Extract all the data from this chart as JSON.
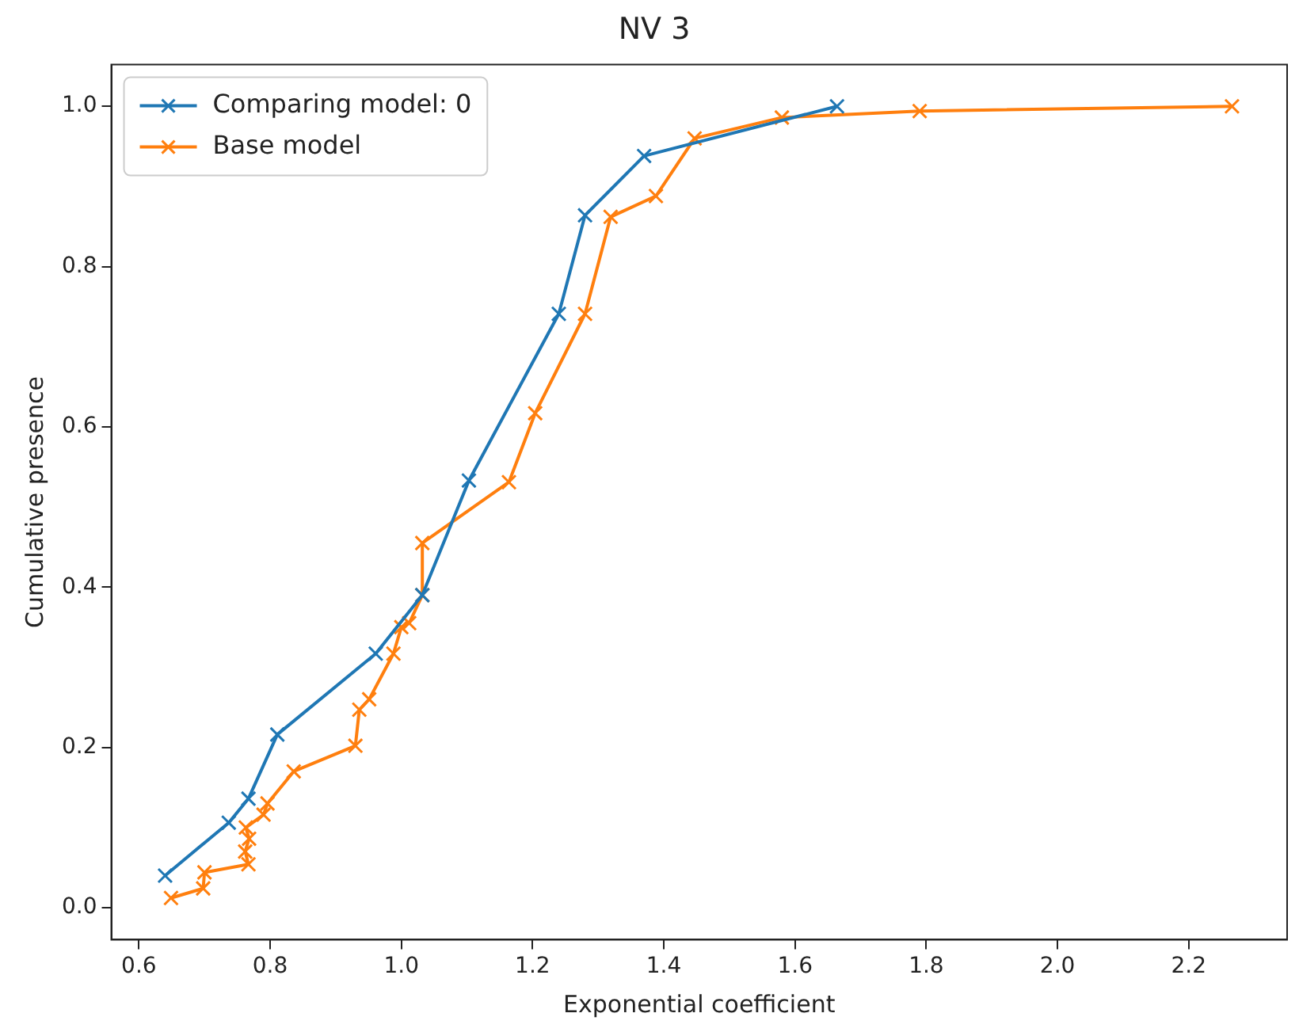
{
  "chart_data": {
    "type": "line",
    "title": "NV 3",
    "xlabel": "Exponential coefficient",
    "ylabel": "Cumulative presence",
    "xlim": [
      0.558,
      2.35
    ],
    "xticks": [
      0.6,
      0.8,
      {
        "value": 1,
        "label": "1.0"
      },
      1.2,
      1.4,
      1.6,
      1.8,
      {
        "value": 2,
        "label": "2.0"
      },
      2.2
    ],
    "ylim": [
      -0.04,
      1.052
    ],
    "yticks": [
      {
        "value": 0,
        "label": "0.0"
      },
      0.2,
      0.4,
      0.6,
      0.8,
      {
        "value": 1,
        "label": "1.0"
      }
    ],
    "grid": false,
    "legend": "top left",
    "marker": "cross",
    "line_style": "solid",
    "series": [
      {
        "name": "Comparing model: 0",
        "color": "#1f77b4",
        "x": [
          0.64,
          0.737,
          0.767,
          0.811,
          0.961,
          1.032,
          1.103,
          1.24,
          1.28,
          1.37,
          1.664
        ],
        "values": [
          0.04,
          0.106,
          0.136,
          0.216,
          0.317,
          0.39,
          0.533,
          0.741,
          0.864,
          0.938,
          1.0
        ]
      },
      {
        "name": "Base model",
        "color": "#ff7f0e",
        "x": [
          0.649,
          0.698,
          0.7,
          0.767,
          0.762,
          0.768,
          0.763,
          0.79,
          0.796,
          0.836,
          0.93,
          0.936,
          0.951,
          0.988,
          1.0,
          1.012,
          1.032,
          1.032,
          1.164,
          1.204,
          1.28,
          1.319,
          1.388,
          1.447,
          1.58,
          1.79,
          2.266
        ],
        "values": [
          0.012,
          0.024,
          0.044,
          0.054,
          0.07,
          0.086,
          0.1,
          0.116,
          0.13,
          0.17,
          0.202,
          0.247,
          0.26,
          0.317,
          0.35,
          0.355,
          0.39,
          0.455,
          0.531,
          0.617,
          0.741,
          0.862,
          0.888,
          0.96,
          0.986,
          0.994,
          1.0
        ]
      }
    ]
  }
}
